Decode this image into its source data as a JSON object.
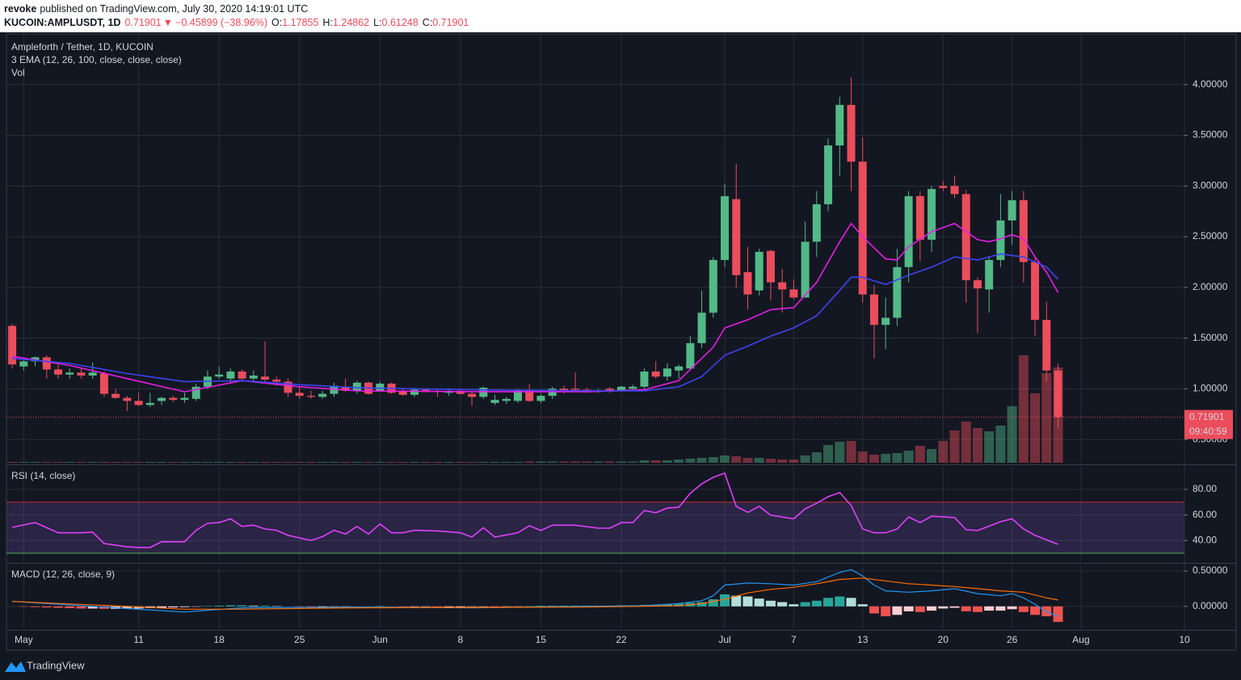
{
  "header": {
    "author": "revoke",
    "published": "published on TradingView.com, July 30, 2020 14:19:01 UTC",
    "symbol": "KUCOIN:AMPLUSDT, 1D",
    "last": "0.71901",
    "arrow": "▼",
    "change": "−0.45899 (−38.96%)",
    "ohlc": [
      {
        "label": "O:",
        "value": "1.17855"
      },
      {
        "label": "H:",
        "value": "1.24862"
      },
      {
        "label": "L:",
        "value": "0.61248"
      },
      {
        "label": "C:",
        "value": "0.71901"
      }
    ]
  },
  "chart_data": [
    {
      "type": "candlestick",
      "title": "Ampleforth / Tether, 1D, KUCOIN",
      "indicator": "3 EMA (12, 26, 100, close, close, close)",
      "volume_label": "Vol",
      "countdown": "09:40:59",
      "xlim": [
        -0.5,
        102
      ],
      "xticks": [
        {
          "value": 1,
          "label": "May"
        },
        11,
        18,
        25,
        {
          "value": 32,
          "label": "Jun"
        },
        {
          "value": 39,
          "label": "8"
        },
        {
          "value": 46,
          "label": "15"
        },
        {
          "value": 53,
          "label": "22"
        },
        {
          "value": 62,
          "label": "Jul"
        },
        {
          "value": 68,
          "label": "7"
        },
        {
          "value": 74,
          "label": "13"
        },
        {
          "value": 81,
          "label": "20"
        },
        {
          "value": 87,
          "label": "26"
        },
        {
          "value": 93,
          "label": "Aug"
        },
        {
          "value": 102,
          "label": "10"
        }
      ],
      "ylim": [
        0.27,
        4.5
      ],
      "yticks": [
        {
          "value": 0.5,
          "label": "0.50000"
        },
        {
          "value": 1,
          "label": "1.00000"
        },
        {
          "value": 1.5,
          "label": "1.50000"
        },
        {
          "value": 2,
          "label": "2.00000"
        },
        {
          "value": 2.5,
          "label": "2.50000"
        },
        {
          "value": 3,
          "label": "3.00000"
        },
        {
          "value": 3.5,
          "label": "3.50000"
        },
        {
          "value": 4,
          "label": "4.00000"
        }
      ],
      "grid": true,
      "up_color": "#53b987",
      "down_color": "#eb4d5c",
      "open": [
        1.62,
        1.22,
        1.27,
        1.31,
        1.19,
        1.14,
        1.16,
        1.13,
        1.15,
        0.95,
        0.91,
        0.88,
        0.84,
        0.88,
        0.91,
        0.89,
        0.9,
        1.02,
        1.12,
        1.1,
        1.17,
        1.1,
        1.12,
        1.09,
        1.07,
        0.96,
        0.93,
        0.92,
        0.95,
        1.02,
        0.98,
        1.06,
        0.98,
        1.05,
        0.98,
        0.94,
        0.99,
        0.98,
        0.96,
        0.98,
        0.95,
        0.92,
        0.86,
        0.88,
        0.88,
        0.98,
        0.88,
        0.93,
        1.0,
        1.0,
        0.99,
        0.98,
        1.0,
        0.98,
        1.0,
        1.02,
        1.17,
        1.12,
        1.18,
        1.2,
        1.45,
        1.75,
        2.27,
        2.87,
        2.15,
        1.97,
        2.36,
        2.05,
        1.98,
        1.9,
        2.45,
        2.82,
        3.4,
        3.8,
        3.24,
        1.93,
        1.63,
        1.7,
        2.2,
        2.9,
        2.47,
        3.0,
        3.0,
        2.92,
        2.07,
        1.98,
        2.27,
        2.66,
        2.86,
        2.25,
        1.68,
        1.17855
      ],
      "high": [
        1.64,
        1.28,
        1.32,
        1.33,
        1.24,
        1.2,
        1.21,
        1.26,
        1.17,
        1.0,
        0.93,
        0.96,
        0.96,
        0.92,
        0.93,
        0.96,
        1.05,
        1.18,
        1.22,
        1.2,
        1.19,
        1.18,
        1.47,
        1.12,
        1.1,
        1.02,
        0.98,
        0.98,
        1.06,
        1.1,
        1.08,
        1.07,
        1.07,
        1.06,
        1.0,
        1.01,
        1.0,
        1.0,
        1.0,
        1.0,
        0.97,
        1.02,
        0.94,
        0.92,
        1.0,
        1.05,
        0.95,
        1.02,
        1.03,
        1.16,
        1.01,
        1.0,
        1.02,
        1.03,
        1.04,
        1.2,
        1.27,
        1.25,
        1.24,
        1.52,
        1.97,
        2.3,
        3.02,
        3.22,
        2.4,
        2.38,
        2.37,
        2.18,
        2.08,
        2.65,
        2.95,
        3.47,
        3.88,
        4.07,
        3.48,
        2.02,
        1.9,
        2.38,
        2.95,
        2.95,
        3.0,
        3.05,
        3.1,
        2.96,
        2.1,
        2.3,
        2.92,
        2.95,
        2.95,
        2.3,
        1.86,
        1.24862
      ],
      "low": [
        1.2,
        1.18,
        1.22,
        1.1,
        1.1,
        1.1,
        1.1,
        1.1,
        0.92,
        0.9,
        0.78,
        0.83,
        0.82,
        0.84,
        0.87,
        0.86,
        0.88,
        1.0,
        1.1,
        1.05,
        1.08,
        1.06,
        1.05,
        1.03,
        0.92,
        0.9,
        0.9,
        0.9,
        0.92,
        0.97,
        0.95,
        0.94,
        0.97,
        0.95,
        0.93,
        0.92,
        0.96,
        0.92,
        0.93,
        0.94,
        0.83,
        0.9,
        0.84,
        0.85,
        0.86,
        0.87,
        0.86,
        0.9,
        0.95,
        0.98,
        0.96,
        0.96,
        0.96,
        0.97,
        0.98,
        1.0,
        1.1,
        1.08,
        1.1,
        1.18,
        1.4,
        1.7,
        2.2,
        2.0,
        1.78,
        1.92,
        1.87,
        1.75,
        1.88,
        1.9,
        2.3,
        2.75,
        3.1,
        2.95,
        1.85,
        1.3,
        1.39,
        1.62,
        2.05,
        2.26,
        2.35,
        2.95,
        2.88,
        1.85,
        1.55,
        1.75,
        2.2,
        2.42,
        2.05,
        1.52,
        1.07,
        0.61248
      ],
      "close": [
        1.24,
        1.27,
        1.31,
        1.19,
        1.14,
        1.16,
        1.13,
        1.16,
        0.95,
        0.91,
        0.88,
        0.84,
        0.86,
        0.91,
        0.89,
        0.91,
        1.02,
        1.12,
        1.14,
        1.17,
        1.1,
        1.13,
        1.09,
        1.07,
        0.96,
        0.93,
        0.92,
        0.95,
        1.03,
        0.98,
        1.06,
        0.95,
        1.05,
        0.96,
        0.94,
        0.99,
        0.98,
        0.97,
        0.98,
        0.95,
        0.92,
        1.01,
        0.89,
        0.9,
        0.98,
        0.88,
        0.93,
        1.0,
        0.98,
        0.99,
        0.98,
        0.98,
        0.97,
        1.02,
        1.02,
        1.17,
        1.12,
        1.2,
        1.22,
        1.45,
        1.75,
        2.27,
        2.9,
        2.12,
        1.93,
        2.35,
        2.05,
        1.98,
        1.9,
        2.45,
        2.82,
        3.4,
        3.8,
        3.24,
        1.93,
        1.63,
        1.7,
        2.2,
        2.9,
        2.47,
        2.97,
        2.98,
        2.92,
        2.07,
        1.99,
        2.27,
        2.66,
        2.86,
        2.25,
        1.68,
        1.18,
        0.71901
      ],
      "volume": [
        1,
        1,
        1,
        1,
        1,
        1,
        1,
        1,
        1,
        1,
        1,
        1,
        1,
        1,
        1,
        1,
        1,
        1,
        1,
        1,
        1,
        1,
        1,
        1,
        1,
        1,
        1,
        1,
        1,
        1,
        1,
        1,
        1,
        1,
        1,
        1,
        1,
        1,
        1,
        1,
        1,
        1,
        1,
        1,
        1,
        1.5,
        1.5,
        1.5,
        1.5,
        1.5,
        1.5,
        1.5,
        1.5,
        1.5,
        1.5,
        3,
        3,
        3,
        4,
        5,
        6,
        7,
        9,
        8,
        6,
        6,
        5,
        4,
        4,
        9,
        13,
        22,
        26,
        27,
        14,
        10,
        11,
        12,
        15,
        21,
        17,
        27,
        40,
        51,
        43,
        39,
        46,
        70,
        133,
        86,
        111,
        118
      ],
      "series": [
        {
          "color": "#e61ee6",
          "x": [
            0,
            5,
            10,
            15,
            20,
            25,
            30,
            40,
            50,
            55,
            58,
            60,
            61,
            62,
            64,
            66,
            68,
            70,
            72,
            73,
            74,
            76,
            77,
            78,
            80,
            82,
            84,
            85,
            86,
            87,
            88,
            89,
            90,
            91
          ],
          "values": [
            1.32,
            1.23,
            1.1,
            0.97,
            1.08,
            1.02,
            0.98,
            0.97,
            0.97,
            0.99,
            1.08,
            1.3,
            1.41,
            1.6,
            1.68,
            1.78,
            1.8,
            2.05,
            2.45,
            2.63,
            2.5,
            2.28,
            2.27,
            2.4,
            2.55,
            2.63,
            2.47,
            2.45,
            2.48,
            2.52,
            2.48,
            2.3,
            2.15,
            1.95
          ]
        },
        {
          "color": "#3d44f0",
          "x": [
            0,
            5,
            10,
            15,
            20,
            25,
            30,
            40,
            50,
            55,
            58,
            60,
            62,
            64,
            66,
            68,
            70,
            72,
            73,
            74,
            76,
            78,
            80,
            82,
            84,
            86,
            88,
            90,
            91
          ],
          "values": [
            1.3,
            1.25,
            1.15,
            1.07,
            1.08,
            1.04,
            1.01,
            0.99,
            0.98,
            0.98,
            1.02,
            1.12,
            1.33,
            1.42,
            1.52,
            1.6,
            1.72,
            1.97,
            2.1,
            2.1,
            2.03,
            2.12,
            2.2,
            2.3,
            2.27,
            2.33,
            2.3,
            2.2,
            2.08
          ]
        }
      ]
    },
    {
      "type": "rsi",
      "title": "RSI (14, close)",
      "ylim": [
        23.7,
        97.7
      ],
      "yticks": [
        {
          "value": 40,
          "label": "40.00"
        },
        {
          "value": 60,
          "label": "60.00"
        },
        {
          "value": 80,
          "label": "80.00"
        }
      ],
      "grid": true,
      "bands": [
        30,
        70
      ],
      "band_colors": [
        "#4caf50",
        "#c62828"
      ],
      "color": "#e040fb",
      "x": [
        0,
        2,
        4,
        6,
        7,
        8,
        10,
        11,
        12,
        13,
        15,
        16,
        17,
        18,
        19,
        20,
        21,
        22,
        23,
        24,
        26,
        27,
        28,
        29,
        30,
        31,
        32,
        33,
        34,
        35,
        37,
        39,
        40,
        41,
        42,
        44,
        45,
        46,
        47,
        49,
        51,
        52,
        53,
        54,
        55,
        56,
        57,
        58,
        59,
        60,
        61,
        62,
        63,
        64,
        65,
        66,
        68,
        69,
        70,
        71,
        72,
        73,
        74,
        75,
        76,
        77,
        78,
        79,
        80,
        82,
        83,
        84,
        86,
        87,
        88,
        89,
        91
      ],
      "values": [
        50.3,
        54,
        46,
        46,
        46.5,
        37.6,
        35,
        34.5,
        34.5,
        39,
        39,
        48,
        53.4,
        54,
        57,
        51,
        52,
        49,
        48,
        44,
        40,
        43,
        48,
        45,
        51,
        45,
        53,
        46,
        46,
        48,
        47.5,
        46,
        42.7,
        50,
        42.7,
        46,
        51.5,
        47.8,
        52,
        52,
        49.6,
        49.6,
        54,
        54,
        63.5,
        61.7,
        65.4,
        66,
        77,
        84.4,
        89.5,
        92.7,
        66.7,
        62,
        66.7,
        59.8,
        57,
        64.8,
        69.2,
        74.3,
        77.5,
        67.4,
        49,
        46,
        46,
        49,
        58.5,
        54,
        59,
        58,
        48.4,
        47.8,
        54.7,
        57,
        49,
        44,
        37
      ]
    },
    {
      "type": "macd",
      "title": "MACD (12, 26, close, 9)",
      "ylim": [
        -0.31,
        0.58
      ],
      "yticks": [
        {
          "value": 0,
          "label": "0.00000"
        },
        {
          "value": 0.5,
          "label": "0.50000"
        }
      ],
      "grid": true,
      "histogram_colors": [
        "#26a69a",
        "#b2dfdb",
        "#ef5350",
        "#ffcdd2"
      ],
      "histogram": [
        0,
        -0.005,
        -0.01,
        -0.015,
        -0.02,
        -0.025,
        -0.03,
        -0.03,
        -0.035,
        -0.035,
        -0.03,
        -0.03,
        -0.025,
        -0.02,
        -0.015,
        -0.01,
        -0.005,
        0.005,
        0.01,
        0.015,
        0.015,
        0.01,
        0.01,
        0.005,
        0,
        -0.005,
        -0.01,
        -0.01,
        -0.005,
        -0.005,
        0,
        0,
        0.005,
        0,
        -0.005,
        -0.005,
        -0.005,
        -0.01,
        -0.01,
        -0.01,
        -0.005,
        -0.005,
        -0.01,
        -0.005,
        -0.005,
        0.005,
        0.01,
        0.01,
        0.01,
        0.01,
        0.01,
        0.01,
        0.01,
        0.015,
        0.015,
        0.02,
        0.025,
        0.03,
        0.04,
        0.05,
        0.06,
        0.1,
        0.17,
        0.15,
        0.14,
        0.11,
        0.08,
        0.06,
        0.03,
        0.06,
        0.08,
        0.12,
        0.14,
        0.12,
        0.03,
        -0.1,
        -0.14,
        -0.12,
        -0.07,
        -0.08,
        -0.06,
        -0.03,
        -0.02,
        -0.07,
        -0.08,
        -0.06,
        -0.06,
        -0.04,
        -0.08,
        -0.12,
        -0.14,
        -0.22
      ],
      "series": [
        {
          "color": "#2196f3",
          "x": [
            0,
            10,
            15,
            20,
            30,
            40,
            50,
            55,
            58,
            60,
            61,
            62,
            64,
            66,
            68,
            70,
            72,
            73,
            74,
            75,
            76,
            78,
            80,
            82,
            84,
            86,
            87,
            88,
            89,
            90,
            91
          ],
          "values": [
            0.07,
            -0.03,
            -0.08,
            -0.02,
            -0.01,
            -0.02,
            0,
            0.01,
            0.04,
            0.08,
            0.15,
            0.3,
            0.33,
            0.32,
            0.3,
            0.35,
            0.48,
            0.52,
            0.43,
            0.3,
            0.22,
            0.2,
            0.22,
            0.25,
            0.18,
            0.15,
            0.18,
            0.12,
            0.03,
            -0.08,
            -0.14
          ]
        },
        {
          "color": "#ff6d00",
          "x": [
            0,
            10,
            15,
            20,
            30,
            50,
            58,
            60,
            62,
            64,
            66,
            68,
            70,
            72,
            74,
            76,
            78,
            80,
            82,
            84,
            86,
            88,
            90,
            91
          ],
          "values": [
            0.07,
            0,
            -0.04,
            -0.04,
            -0.02,
            -0.01,
            0.01,
            0.04,
            0.1,
            0.19,
            0.24,
            0.27,
            0.32,
            0.38,
            0.4,
            0.36,
            0.32,
            0.3,
            0.28,
            0.25,
            0.22,
            0.2,
            0.12,
            0.09
          ]
        }
      ]
    }
  ],
  "footer": {
    "brand": "TradingView"
  }
}
